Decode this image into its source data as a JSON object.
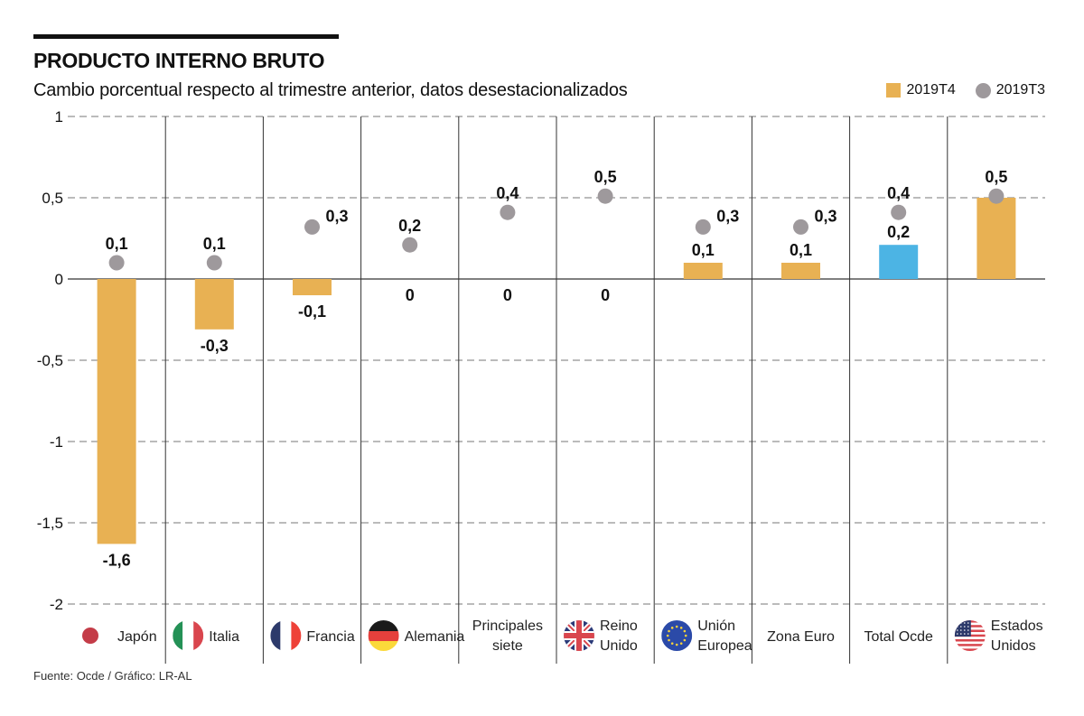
{
  "header": {
    "title": "PRODUCTO INTERNO BRUTO",
    "subtitle": "Cambio porcentual respecto al trimestre anterior, datos desestacionalizados"
  },
  "legend": [
    {
      "label": "2019T4",
      "shape": "square",
      "color": "#e8b153"
    },
    {
      "label": "2019T3",
      "shape": "circle",
      "color": "#9e999c"
    }
  ],
  "source": "Fuente: Ocde / Gráfico: LR-AL",
  "colors": {
    "bar": "#e8b153",
    "bar_highlight": "#4cb4e4",
    "dot": "#9e999c",
    "grid": "#777777",
    "divider": "#333333"
  },
  "chart_data": {
    "type": "bar",
    "title": "PRODUCTO INTERNO BRUTO",
    "subtitle": "Cambio porcentual respecto al trimestre anterior, datos desestacionalizados",
    "xlabel": "",
    "ylabel": "",
    "ylim": [
      -2,
      1
    ],
    "yticks": [
      1,
      0.5,
      0,
      -0.5,
      -1,
      -1.5,
      -2
    ],
    "ytick_labels": [
      "1",
      "0,5",
      "0",
      "-0,5",
      "-1",
      "-1,5",
      "-2"
    ],
    "grid": true,
    "legend_position": "top-right",
    "categories": [
      {
        "label": [
          "Japón"
        ],
        "flag": "japan-flag"
      },
      {
        "label": [
          "Italia"
        ],
        "flag": "italy-flag"
      },
      {
        "label": [
          "Francia"
        ],
        "flag": "france-flag"
      },
      {
        "label": [
          "Alemania"
        ],
        "flag": "germany-flag"
      },
      {
        "label": [
          "Principales",
          "siete"
        ],
        "flag": null
      },
      {
        "label": [
          "Reino",
          "Unido"
        ],
        "flag": "uk-flag"
      },
      {
        "label": [
          "Unión",
          "Europea"
        ],
        "flag": "eu-flag"
      },
      {
        "label": [
          "Zona Euro"
        ],
        "flag": null
      },
      {
        "label": [
          "Total Ocde"
        ],
        "flag": null
      },
      {
        "label": [
          "Estados",
          "Unidos"
        ],
        "flag": "usa-flag"
      }
    ],
    "series": [
      {
        "name": "2019T4",
        "kind": "bar",
        "values": [
          -1.63,
          -0.31,
          -0.1,
          0,
          0,
          0,
          0.1,
          0.1,
          0.21,
          0.5
        ],
        "labels": [
          "-1,6",
          "-0,3",
          "-0,1",
          "0",
          "0",
          "0",
          "0,1",
          "0,1",
          "0,2",
          "0,5"
        ],
        "highlight_index": 8
      },
      {
        "name": "2019T3",
        "kind": "dot",
        "values": [
          0.1,
          0.1,
          0.32,
          0.21,
          0.41,
          0.51,
          0.32,
          0.32,
          0.41,
          0.51
        ],
        "labels": [
          "0,1",
          "0,1",
          "0,3",
          "0,2",
          "0,4",
          "0,5",
          "0,3",
          "0,3",
          "0,4",
          "0,5"
        ]
      }
    ]
  }
}
